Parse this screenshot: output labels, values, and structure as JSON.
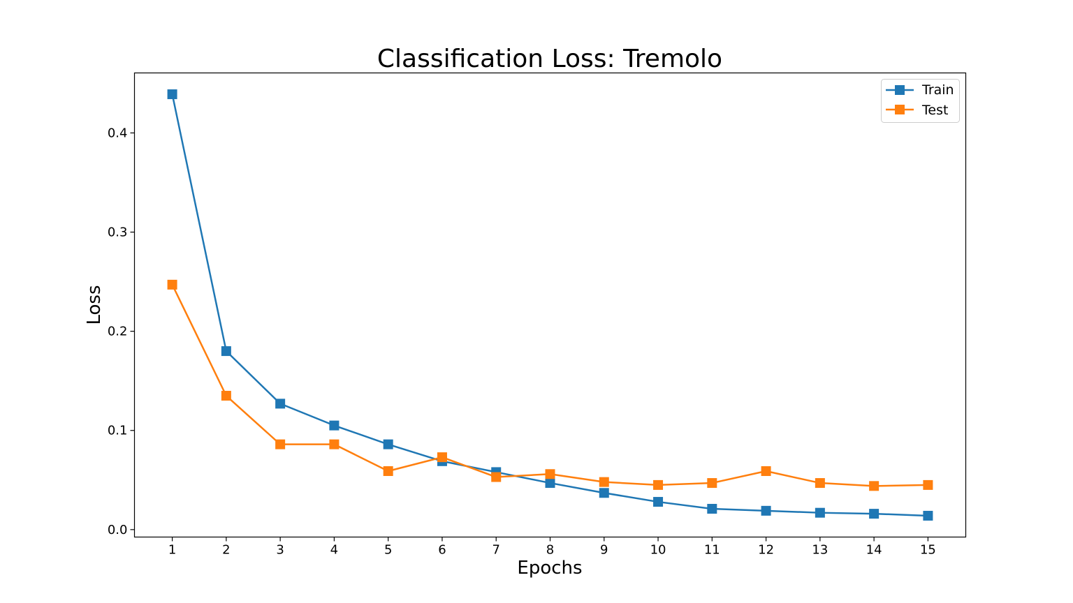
{
  "chart_data": {
    "type": "line",
    "title": "Classification Loss: Tremolo",
    "xlabel": "Epochs",
    "ylabel": "Loss",
    "x": [
      1,
      2,
      3,
      4,
      5,
      6,
      7,
      8,
      9,
      10,
      11,
      12,
      13,
      14,
      15
    ],
    "xlim": [
      0.3,
      15.7
    ],
    "ylim": [
      -0.0075,
      0.4605
    ],
    "yticks": [
      0.0,
      0.1,
      0.2,
      0.3,
      0.4
    ],
    "ytick_labels": [
      "0.0",
      "0.1",
      "0.2",
      "0.3",
      "0.4"
    ],
    "grid": false,
    "legend_position": "top-right",
    "series": [
      {
        "name": "Train",
        "color": "#1f77b4",
        "marker": "square",
        "values": [
          0.439,
          0.18,
          0.127,
          0.105,
          0.086,
          0.069,
          0.058,
          0.047,
          0.037,
          0.028,
          0.021,
          0.019,
          0.017,
          0.016,
          0.014
        ]
      },
      {
        "name": "Test",
        "color": "#ff7f0e",
        "marker": "square",
        "values": [
          0.247,
          0.135,
          0.086,
          0.086,
          0.059,
          0.073,
          0.053,
          0.056,
          0.048,
          0.045,
          0.047,
          0.059,
          0.047,
          0.044,
          0.045
        ]
      }
    ]
  }
}
